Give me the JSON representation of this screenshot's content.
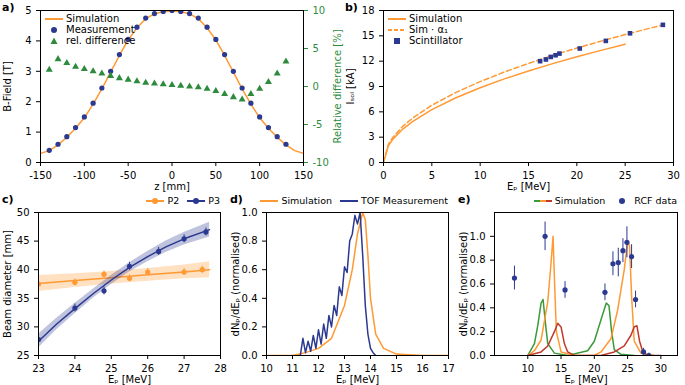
{
  "chart_data": [
    {
      "type": "line",
      "title": "a)",
      "xlabel": "z [mm]",
      "ylabel": "B-Field [T]",
      "y2label": "Relative difference [%]",
      "xlim": [
        -150,
        150
      ],
      "xticks": [
        -150,
        -100,
        -50,
        0,
        50,
        100,
        150
      ],
      "ylim": [
        0,
        5
      ],
      "yticks": [
        0,
        1,
        2,
        3,
        4,
        5
      ],
      "y2lim": [
        -10,
        10
      ],
      "y2ticks": [
        -10,
        -5,
        0,
        5,
        10
      ],
      "legend": "top-left",
      "series": [
        {
          "name": "Simulation",
          "type": "line",
          "color": "#ff9933",
          "x": [
            -150,
            -140,
            -130,
            -120,
            -110,
            -100,
            -90,
            -80,
            -70,
            -60,
            -50,
            -40,
            -30,
            -20,
            -10,
            0,
            10,
            20,
            30,
            40,
            50,
            60,
            70,
            80,
            90,
            100,
            110,
            120,
            130,
            140,
            150
          ],
          "values": [
            0.3,
            0.39,
            0.58,
            0.83,
            1.13,
            1.47,
            1.92,
            2.42,
            2.97,
            3.52,
            4.03,
            4.43,
            4.73,
            4.89,
            4.96,
            4.98,
            4.96,
            4.89,
            4.73,
            4.43,
            4.03,
            3.52,
            2.97,
            2.42,
            1.92,
            1.47,
            1.13,
            0.83,
            0.58,
            0.39,
            0.3
          ]
        },
        {
          "name": "Measurement",
          "type": "scatter",
          "marker": "circle",
          "color": "#2b3990",
          "x": [
            -140,
            -130,
            -120,
            -110,
            -100,
            -90,
            -80,
            -70,
            -60,
            -50,
            -40,
            -30,
            -20,
            -10,
            0,
            10,
            20,
            30,
            40,
            50,
            60,
            70,
            80,
            90,
            100,
            110,
            120,
            130
          ],
          "values": [
            0.4,
            0.6,
            0.85,
            1.15,
            1.5,
            1.95,
            2.45,
            3.0,
            3.55,
            4.05,
            4.45,
            4.75,
            4.9,
            4.97,
            5.0,
            4.97,
            4.9,
            4.75,
            4.45,
            4.05,
            3.55,
            3.0,
            2.45,
            1.95,
            1.5,
            1.15,
            0.85,
            0.6
          ]
        },
        {
          "name": "rel. difference",
          "type": "scatter",
          "marker": "triangle",
          "color": "#2e8b3e",
          "axis": "y2",
          "x": [
            -140,
            -130,
            -120,
            -110,
            -100,
            -90,
            -80,
            -70,
            -60,
            -50,
            -40,
            -30,
            -20,
            -10,
            0,
            10,
            20,
            30,
            40,
            50,
            60,
            70,
            80,
            90,
            100,
            110,
            120,
            130
          ],
          "values": [
            2.2,
            3.6,
            3.1,
            2.6,
            2.3,
            2.0,
            1.7,
            1.4,
            1.1,
            0.9,
            0.7,
            0.5,
            0.4,
            0.3,
            0.2,
            0.1,
            0.0,
            -0.1,
            -0.3,
            -0.6,
            -1.0,
            -1.4,
            -1.7,
            -1.0,
            -0.3,
            0.6,
            1.7,
            3.3
          ]
        }
      ]
    },
    {
      "type": "line",
      "title": "b)",
      "xlabel": "Eₚ [MeV]",
      "ylabel": "Iₛₒₗ [kA]",
      "xlim": [
        0,
        30
      ],
      "xticks": [
        0,
        5,
        10,
        15,
        20,
        25,
        30
      ],
      "ylim": [
        0,
        18
      ],
      "yticks": [
        0,
        3,
        6,
        9,
        12,
        15,
        18
      ],
      "legend": "top-left",
      "series": [
        {
          "name": "Simulation",
          "type": "line",
          "color": "#ff9933",
          "x": [
            0,
            0.5,
            1,
            2,
            3,
            5,
            7.5,
            10,
            12.5,
            15,
            17.5,
            20,
            22.5,
            25
          ],
          "values": [
            0,
            1.98,
            2.8,
            3.96,
            4.85,
            6.26,
            7.67,
            8.85,
            9.9,
            10.84,
            11.71,
            12.52,
            13.28,
            14.0
          ]
        },
        {
          "name": "Sim · α₁",
          "type": "line",
          "line_style": "dashed",
          "color": "#ff9933",
          "x": [
            0,
            0.5,
            1,
            2,
            3,
            5,
            7.5,
            10,
            12.5,
            15,
            17.5,
            20,
            22.5,
            25,
            27.5,
            29
          ],
          "values": [
            0,
            2.14,
            3.03,
            4.29,
            5.25,
            6.78,
            8.3,
            9.58,
            10.71,
            11.74,
            12.68,
            13.55,
            14.37,
            15.15,
            15.89,
            16.32
          ]
        },
        {
          "name": "Scintillator",
          "type": "scatter",
          "marker": "square",
          "color": "#2b3990",
          "x": [
            16.2,
            16.8,
            17.3,
            17.8,
            18.2,
            20.3,
            23.0,
            25.5,
            28.9
          ],
          "values": [
            12.0,
            12.2,
            12.5,
            12.7,
            12.9,
            13.5,
            14.4,
            15.3,
            16.3
          ]
        }
      ]
    },
    {
      "type": "scatter",
      "title": "c)",
      "xlabel": "Eₚ [MeV]",
      "ylabel": "Beam diameter [mm]",
      "xlim": [
        23,
        28
      ],
      "xticks": [
        23,
        24,
        25,
        26,
        27,
        28
      ],
      "ylim": [
        25,
        50
      ],
      "yticks": [
        25,
        30,
        35,
        40,
        45,
        50
      ],
      "legend": "top-right",
      "series": [
        {
          "name": "P2",
          "type": "scatter",
          "marker": "circle",
          "color": "#ff9933",
          "x": [
            23,
            24,
            24.8,
            25.5,
            26,
            27,
            27.5
          ],
          "values": [
            37.5,
            37.8,
            39.2,
            38.5,
            39.6,
            39.6,
            40.0
          ],
          "errors": [
            0.6,
            0.6,
            0.6,
            0.6,
            0.6,
            0.6,
            0.6
          ],
          "fit": {
            "x": [
              23,
              24,
              25,
              26,
              27,
              27.7
            ],
            "values": [
              37.6,
              38.1,
              38.6,
              39.1,
              39.6,
              40.0
            ],
            "lower": [
              36.2,
              36.9,
              37.5,
              38.0,
              38.4,
              38.6
            ],
            "upper": [
              39.0,
              39.3,
              39.7,
              40.2,
              40.8,
              41.4
            ]
          }
        },
        {
          "name": "P3",
          "type": "scatter",
          "marker": "circle",
          "color": "#2b3990",
          "x": [
            23,
            24,
            24.8,
            25.5,
            26.3,
            27,
            27.6
          ],
          "values": [
            27.8,
            33.3,
            36.3,
            40.6,
            43.2,
            45.4,
            46.6
          ],
          "errors": [
            0.7,
            0.7,
            0.7,
            0.7,
            0.7,
            0.7,
            0.7
          ],
          "fit": {
            "x": [
              23,
              23.5,
              24,
              24.5,
              25,
              25.5,
              26,
              26.5,
              27,
              27.7
            ],
            "values": [
              27.5,
              30.5,
              33.2,
              35.8,
              38.2,
              40.4,
              42.3,
              44.0,
              45.4,
              47.0
            ],
            "lower": [
              26.3,
              29.5,
              32.3,
              35.0,
              37.4,
              39.6,
              41.4,
              43.0,
              44.3,
              45.7
            ],
            "upper": [
              28.7,
              31.5,
              34.1,
              36.6,
              39.0,
              41.2,
              43.2,
              45.0,
              46.5,
              48.3
            ]
          }
        }
      ]
    },
    {
      "type": "line",
      "title": "d)",
      "xlabel": "Eₚ [MeV]",
      "ylabel": "dNₚ/dEₚ (normalised)",
      "xlim": [
        10,
        17
      ],
      "xticks": [
        10,
        11,
        12,
        13,
        14,
        15,
        16,
        17
      ],
      "ylim": [
        0,
        1
      ],
      "yticks": [
        {
          "value": 0,
          "label": "0.0"
        },
        {
          "value": 0.2,
          "label": "0.2"
        },
        {
          "value": 0.4,
          "label": "0.4"
        },
        {
          "value": 0.6,
          "label": "0.6"
        },
        {
          "value": 0.8,
          "label": "0.8"
        },
        {
          "value": 1,
          "label": "1.0"
        }
      ],
      "legend": "top-right",
      "series": [
        {
          "name": "Simulation",
          "type": "line",
          "color": "#ff9933",
          "x": [
            10,
            11,
            11.5,
            12,
            12.5,
            13,
            13.3,
            13.5,
            13.7,
            13.8,
            13.9,
            14.0,
            14.2,
            14.5,
            15,
            16,
            17
          ],
          "values": [
            0,
            0,
            0.02,
            0.05,
            0.12,
            0.35,
            0.6,
            0.85,
            1.0,
            0.95,
            0.7,
            0.4,
            0.15,
            0.05,
            0.01,
            0,
            0
          ]
        },
        {
          "name": "TOF Measurement",
          "type": "line",
          "color": "#2b3990",
          "x": [
            11.3,
            11.4,
            11.5,
            11.6,
            11.7,
            11.8,
            11.9,
            12.0,
            12.1,
            12.2,
            12.3,
            12.4,
            12.5,
            12.6,
            12.7,
            12.8,
            12.9,
            13.0,
            13.1,
            13.2,
            13.3,
            13.4,
            13.5,
            13.6,
            13.7,
            13.8,
            13.9,
            14.0,
            14.1,
            14.2
          ],
          "values": [
            0.0,
            0.12,
            0.02,
            0.1,
            0.03,
            0.14,
            0.05,
            0.18,
            0.08,
            0.22,
            0.12,
            0.28,
            0.2,
            0.35,
            0.28,
            0.48,
            0.42,
            0.62,
            0.58,
            0.8,
            0.85,
            0.98,
            0.92,
            1.0,
            0.7,
            0.35,
            0.15,
            0.05,
            0.02,
            0
          ]
        }
      ]
    },
    {
      "type": "line",
      "title": "e)",
      "xlabel": "Eₚ [MeV]",
      "ylabel": "dNₚ/dEₚ (normalised)",
      "xlim": [
        5,
        32.5
      ],
      "xticks": [
        10,
        15,
        20,
        25,
        30
      ],
      "ylim": [
        0,
        1.2
      ],
      "yticks": [
        {
          "value": 0,
          "label": "0.0"
        },
        {
          "value": 0.2,
          "label": "0.2"
        },
        {
          "value": 0.4,
          "label": "0.4"
        },
        {
          "value": 0.6,
          "label": "0.6"
        },
        {
          "value": 0.8,
          "label": "0.8"
        },
        {
          "value": 1,
          "label": "1.0"
        }
      ],
      "legend": "top-right",
      "series": [
        {
          "name": "Simulation",
          "type": "line",
          "colors": [
            "#3a9a3a",
            "#ff9933",
            "#c0392b"
          ],
          "curves": [
            {
              "x": [
                10,
                11,
                11.5,
                12,
                12.3,
                12.6,
                13,
                14,
                16,
                19,
                20,
                21,
                21.8,
                22.2,
                22.6,
                23,
                24,
                26
              ],
              "values": [
                0,
                0.1,
                0.25,
                0.44,
                0.47,
                0.3,
                0.1,
                0.02,
                0,
                0.04,
                0.12,
                0.3,
                0.44,
                0.42,
                0.2,
                0.05,
                0.01,
                0
              ]
            },
            {
              "x": [
                10,
                11,
                12,
                13,
                13.5,
                13.8,
                14.0,
                14.3,
                15,
                17,
                20,
                21,
                22.5,
                23.5,
                24.5,
                25,
                25.3,
                25.6,
                26,
                27,
                29
              ],
              "values": [
                0,
                0.04,
                0.13,
                0.45,
                0.78,
                1.0,
                0.65,
                0.2,
                0.03,
                0,
                0,
                0.03,
                0.14,
                0.38,
                0.72,
                0.96,
                0.92,
                0.5,
                0.12,
                0.02,
                0
              ]
            },
            {
              "x": [
                10,
                12,
                13,
                14,
                14.5,
                15,
                15.5,
                16,
                17,
                21,
                23,
                24.5,
                25.5,
                26,
                26.4,
                26.8,
                27.3,
                28,
                30
              ],
              "values": [
                0,
                0.03,
                0.08,
                0.2,
                0.27,
                0.24,
                0.1,
                0.03,
                0,
                0,
                0.03,
                0.08,
                0.17,
                0.24,
                0.25,
                0.12,
                0.03,
                0,
                0
              ]
            }
          ]
        },
        {
          "name": "RCF data",
          "type": "scatter",
          "marker": "circle",
          "color": "#2b3990",
          "x": [
            8,
            12.6,
            15.6,
            21.6,
            22.8,
            23.6,
            24.3,
            24.9,
            25.6,
            26.2,
            27.4,
            28.2
          ],
          "values": [
            0.65,
            1.0,
            0.55,
            0.53,
            0.77,
            0.78,
            0.88,
            0.95,
            0.83,
            0.47,
            0.03,
            0.0
          ],
          "errors": [
            0.1,
            0.12,
            0.07,
            0.07,
            0.1,
            0.12,
            0.1,
            0.13,
            0.1,
            0.07,
            0.03,
            0.02
          ]
        }
      ]
    }
  ]
}
